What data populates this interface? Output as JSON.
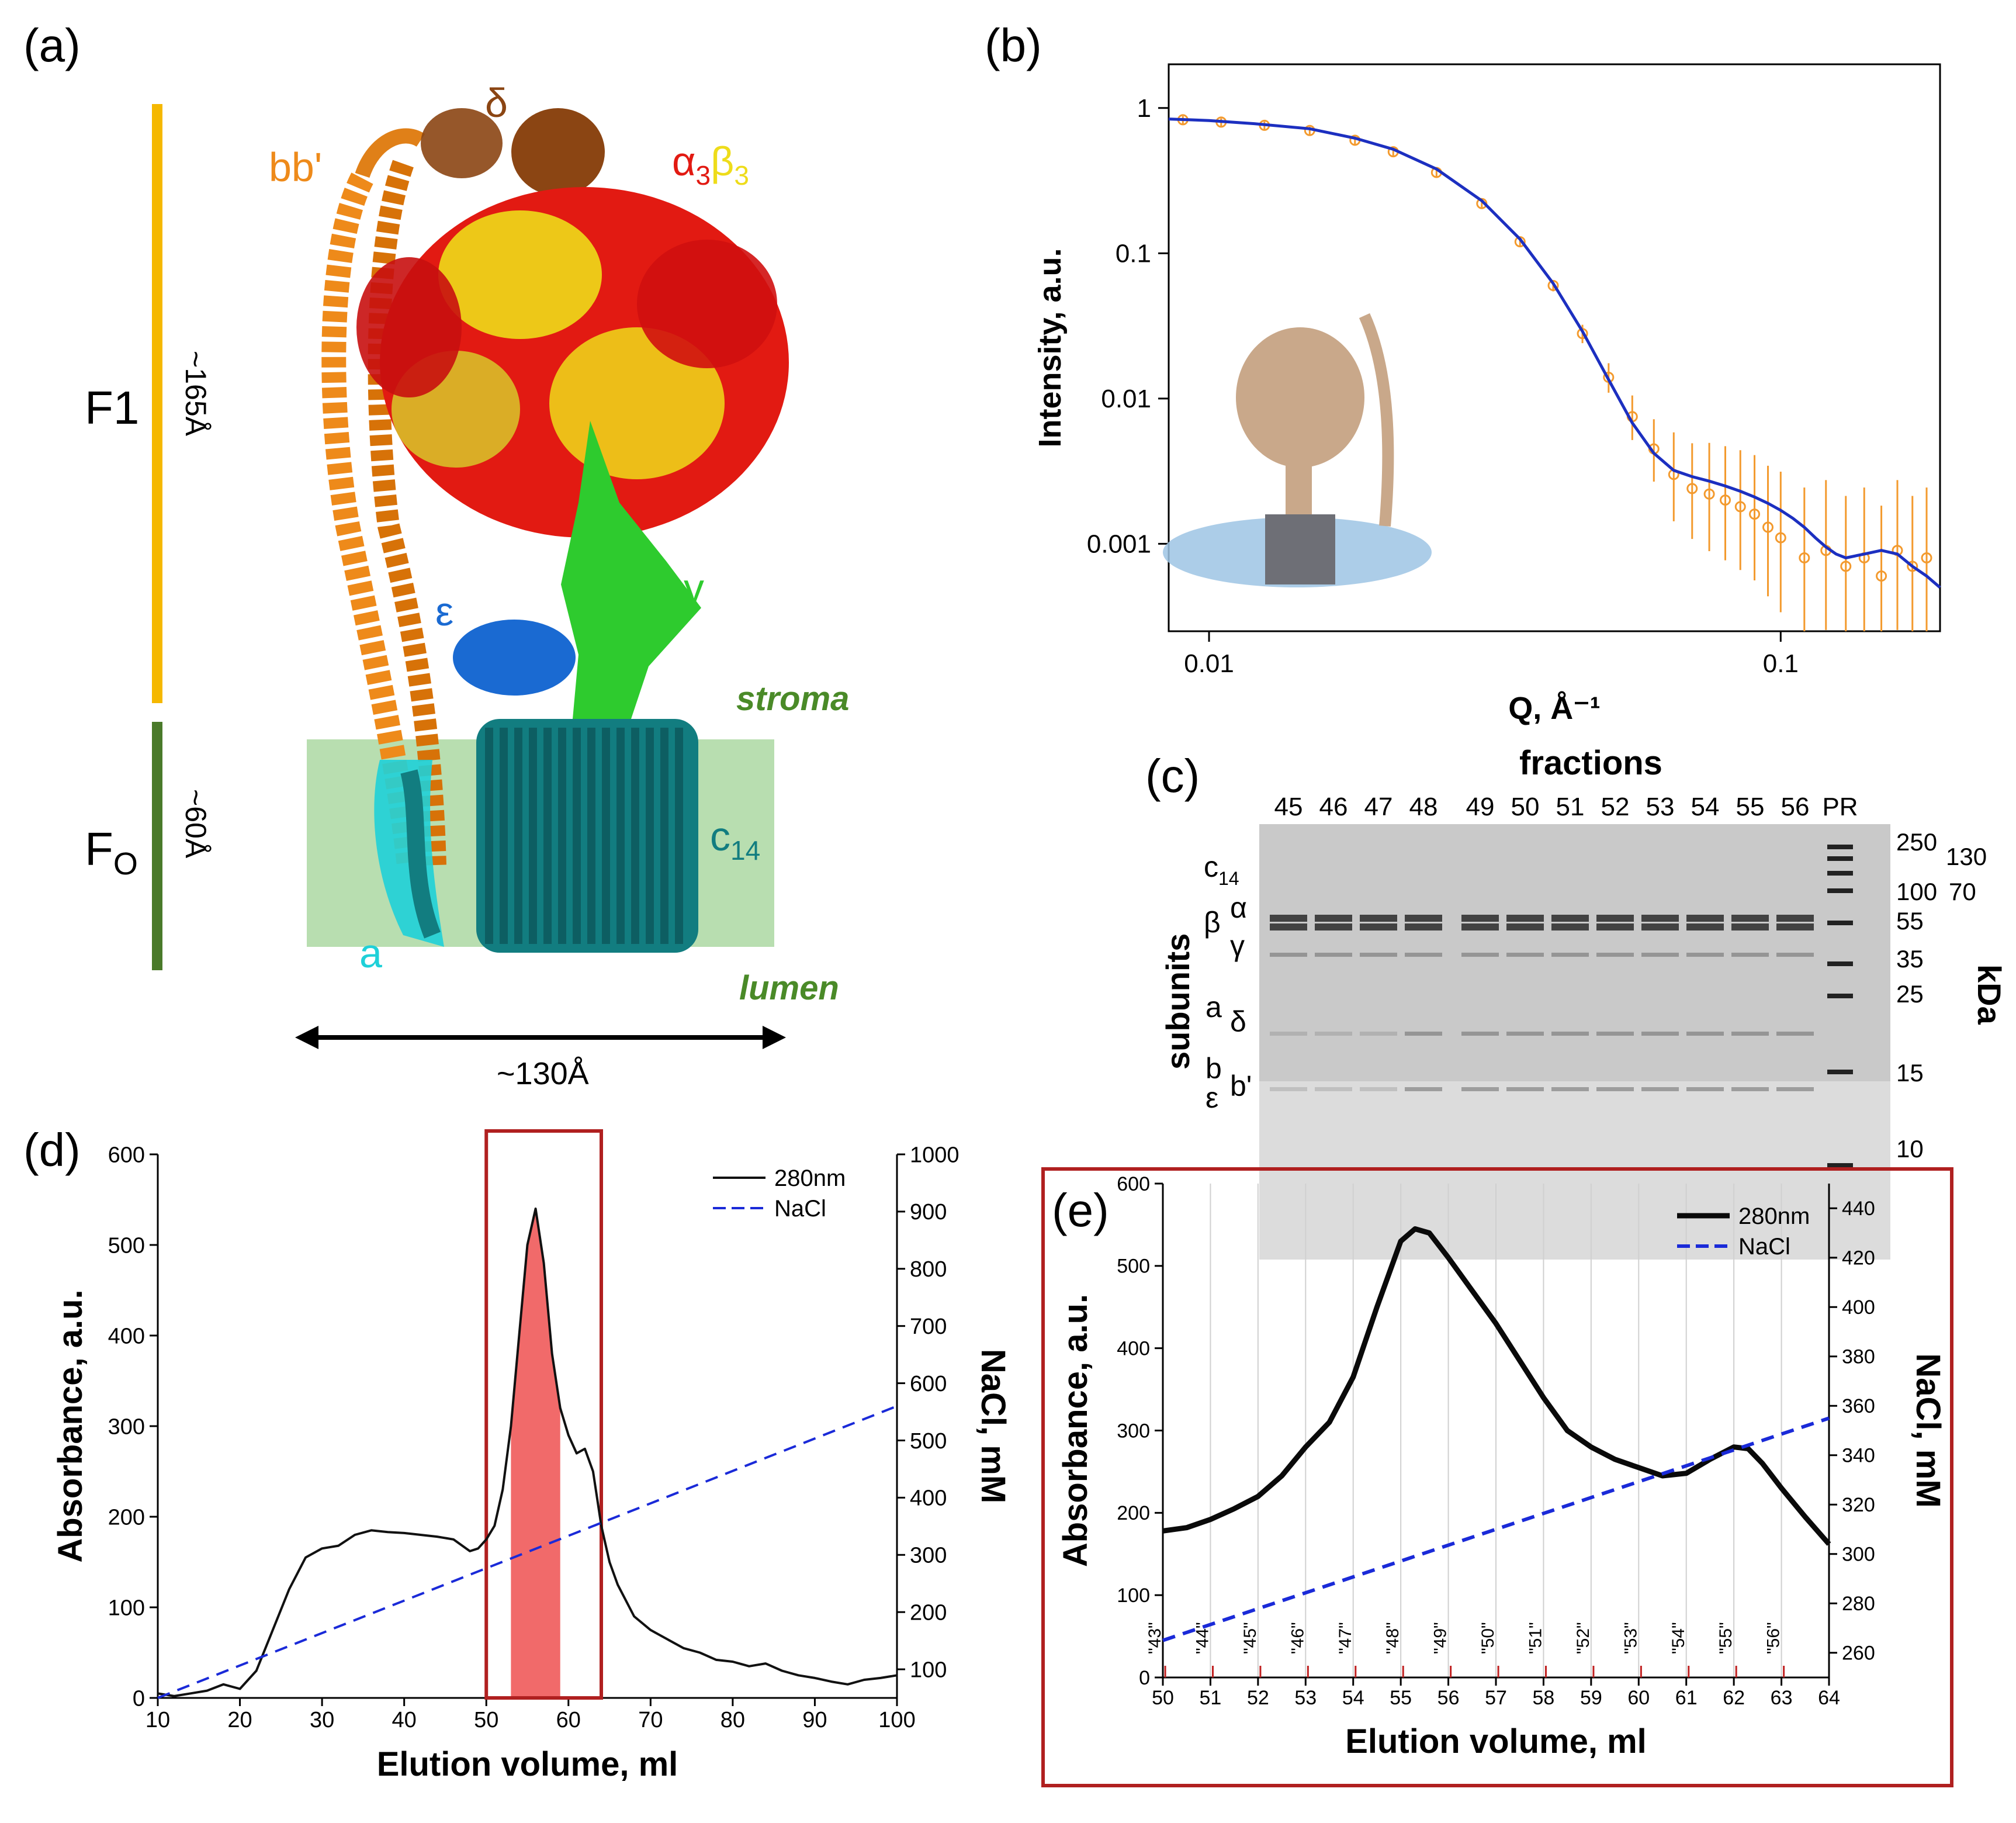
{
  "panels": {
    "a": {
      "tag": "(a)",
      "f1_label": "F1",
      "f1_size": "~165Å",
      "fo_main": "F",
      "fo_sub": "O",
      "fo_size": "~60Å",
      "width_label": "~130Å",
      "subunits": {
        "delta": "δ",
        "bb": "bb'",
        "alpha": "α",
        "alpha_sub": "3",
        "beta": "β",
        "beta_sub": "3",
        "gamma": "γ",
        "epsilon": "ε",
        "c": "c",
        "c_sub": "14",
        "a": "a"
      },
      "stroma": "stroma",
      "lumen": "lumen",
      "colors": {
        "f1_bar": "#f5b800",
        "fo_bar": "#4a7a2a",
        "membrane": "#b8deb0",
        "orange": "#ee8a1a",
        "red": "#e21a12",
        "yellow": "#eedc1a",
        "green": "#2ecb2e",
        "blue": "#1a6ad2",
        "teal": "#127d80",
        "cyan": "#1fd0d8",
        "brown": "#8b4513"
      }
    },
    "b": {
      "tag": "(b)"
    },
    "c": {
      "tag": "(c)",
      "title": "fractions",
      "lanes": [
        "45",
        "46",
        "47",
        "48",
        "49",
        "50",
        "51",
        "52",
        "53",
        "54",
        "55",
        "56",
        "PR"
      ],
      "left_title": "subunits",
      "right_title": "kDa",
      "kda": [
        "250",
        "130",
        "100",
        "70",
        "55",
        "35",
        "25",
        "15",
        "10"
      ],
      "subunit_labels": {
        "c14_main": "c",
        "c14_sub": "14",
        "beta": "β",
        "alpha": "α",
        "gamma": "γ",
        "a": "a",
        "delta": "δ",
        "b": "b",
        "bprime": "b'",
        "epsilon": "ε"
      }
    },
    "d": {
      "tag": "(d)"
    },
    "e": {
      "tag": "(e)"
    }
  },
  "chart_data": [
    {
      "panel": "b",
      "type": "scatter",
      "xscale": "log",
      "yscale": "log",
      "xlabel": "Q, Å⁻¹",
      "ylabel": "Intensity, a.u.",
      "xlim": [
        0.0085,
        0.19
      ],
      "ylim": [
        0.00025,
        2.0
      ],
      "xticks": [
        {
          "v": 0.01,
          "t": "0.01"
        },
        {
          "v": 0.1,
          "t": "0.1"
        }
      ],
      "yticks": [
        {
          "v": 1,
          "t": "1"
        },
        {
          "v": 0.1,
          "t": "0.1"
        },
        {
          "v": 0.01,
          "t": "0.01"
        },
        {
          "v": 0.001,
          "t": "0.001"
        }
      ],
      "series": [
        {
          "kind": "points",
          "color": "#f39a2e",
          "x": [
            0.009,
            0.0105,
            0.0125,
            0.015,
            0.018,
            0.021,
            0.025,
            0.03,
            0.035,
            0.04,
            0.045,
            0.05,
            0.055,
            0.06,
            0.065,
            0.07,
            0.075,
            0.08,
            0.085,
            0.09,
            0.095,
            0.1,
            0.11,
            0.12,
            0.13,
            0.14,
            0.15,
            0.16,
            0.17,
            0.18
          ],
          "y": [
            0.83,
            0.8,
            0.76,
            0.7,
            0.6,
            0.5,
            0.36,
            0.22,
            0.12,
            0.06,
            0.028,
            0.014,
            0.0075,
            0.0045,
            0.003,
            0.0024,
            0.0022,
            0.002,
            0.0018,
            0.0016,
            0.0013,
            0.0011,
            0.0008,
            0.0009,
            0.0007,
            0.0008,
            0.0006,
            0.0009,
            0.0007,
            0.0008
          ],
          "err": [
            0.01,
            0.01,
            0.01,
            0.01,
            0.01,
            0.01,
            0.01,
            0.01,
            0.02,
            0.04,
            0.1,
            0.2,
            0.35,
            0.55,
            0.9,
            1.0,
            1.2,
            1.3,
            1.4,
            1.5,
            1.6,
            1.8,
            2.0,
            2.0,
            2.0,
            2.0,
            2.0,
            2.0,
            2.0,
            2.0
          ]
        },
        {
          "kind": "line",
          "color": "#1c2fc0",
          "x": [
            0.0085,
            0.01,
            0.012,
            0.015,
            0.018,
            0.021,
            0.025,
            0.03,
            0.035,
            0.04,
            0.045,
            0.05,
            0.055,
            0.06,
            0.065,
            0.07,
            0.075,
            0.08,
            0.085,
            0.09,
            0.095,
            0.1,
            0.105,
            0.11,
            0.115,
            0.12,
            0.125,
            0.13,
            0.14,
            0.15,
            0.16,
            0.17,
            0.18,
            0.19
          ],
          "y": [
            0.84,
            0.82,
            0.78,
            0.72,
            0.62,
            0.52,
            0.38,
            0.23,
            0.125,
            0.062,
            0.029,
            0.0135,
            0.0068,
            0.0042,
            0.0032,
            0.0029,
            0.0027,
            0.0025,
            0.0023,
            0.0021,
            0.0019,
            0.0017,
            0.0015,
            0.0013,
            0.0011,
            0.00095,
            0.00085,
            0.0008,
            0.00085,
            0.0009,
            0.00085,
            0.0007,
            0.0006,
            0.0005
          ]
        }
      ]
    },
    {
      "panel": "d",
      "type": "line",
      "xlabel": "Elution volume, ml",
      "ylabel": "Absorbance, a.u.",
      "y2label": "NaCl, mM",
      "xlim": [
        10,
        100
      ],
      "ylim": [
        0,
        600
      ],
      "y2lim": [
        50,
        1000
      ],
      "xticks": [
        10,
        20,
        30,
        40,
        50,
        60,
        70,
        80,
        90,
        100
      ],
      "yticks": [
        0,
        100,
        200,
        300,
        400,
        500,
        600
      ],
      "y2ticks": [
        100,
        200,
        300,
        400,
        500,
        600,
        700,
        800,
        900,
        1000
      ],
      "legend": [
        {
          "name": "280nm",
          "style": "solid"
        },
        {
          "name": "NaCl",
          "style": "dashed"
        }
      ],
      "highlight_box": [
        50,
        64
      ],
      "filled_range": [
        53,
        59
      ],
      "series": [
        {
          "name": "280nm",
          "axis": "left",
          "color": "#111111",
          "x": [
            10,
            12,
            14,
            16,
            18,
            20,
            22,
            24,
            26,
            28,
            30,
            32,
            34,
            36,
            38,
            40,
            42,
            44,
            46,
            48,
            49,
            50,
            51,
            52,
            53,
            54,
            55,
            56,
            57,
            58,
            59,
            60,
            61,
            62,
            63,
            64,
            65,
            66,
            68,
            70,
            72,
            74,
            76,
            78,
            80,
            82,
            84,
            86,
            88,
            90,
            92,
            94,
            96,
            98,
            100
          ],
          "y": [
            5,
            2,
            5,
            8,
            15,
            10,
            30,
            75,
            120,
            155,
            165,
            168,
            180,
            185,
            183,
            182,
            180,
            178,
            175,
            162,
            165,
            175,
            190,
            230,
            300,
            400,
            500,
            540,
            480,
            380,
            320,
            290,
            270,
            275,
            250,
            190,
            150,
            125,
            90,
            75,
            65,
            55,
            50,
            42,
            40,
            35,
            38,
            30,
            25,
            22,
            18,
            15,
            20,
            22,
            25
          ]
        },
        {
          "name": "NaCl",
          "axis": "right",
          "color": "#1a2ad8",
          "x": [
            10,
            100
          ],
          "y": [
            50,
            560
          ]
        }
      ]
    },
    {
      "panel": "e",
      "type": "line",
      "xlabel": "Elution volume, ml",
      "ylabel": "Absorbance, a.u.",
      "y2label": "NaCl, mM",
      "xlim": [
        50,
        64
      ],
      "ylim": [
        0,
        600
      ],
      "y2lim": [
        250,
        450
      ],
      "xticks": [
        50,
        51,
        52,
        53,
        54,
        55,
        56,
        57,
        58,
        59,
        60,
        61,
        62,
        63,
        64
      ],
      "yticks": [
        0,
        100,
        200,
        300,
        400,
        500,
        600
      ],
      "y2ticks": [
        260,
        280,
        300,
        320,
        340,
        360,
        380,
        400,
        420,
        440
      ],
      "legend": [
        {
          "name": "280nm",
          "style": "solid"
        },
        {
          "name": "NaCl",
          "style": "dashed"
        }
      ],
      "fraction_marks": [
        {
          "x": 50.05,
          "t": "\"43\""
        },
        {
          "x": 51.05,
          "t": "\"44\""
        },
        {
          "x": 52.05,
          "t": "\"45\""
        },
        {
          "x": 53.05,
          "t": "\"46\""
        },
        {
          "x": 54.05,
          "t": "\"47\""
        },
        {
          "x": 55.05,
          "t": "\"48\""
        },
        {
          "x": 56.05,
          "t": "\"49\""
        },
        {
          "x": 57.05,
          "t": "\"50\""
        },
        {
          "x": 58.05,
          "t": "\"51\""
        },
        {
          "x": 59.05,
          "t": "\"52\""
        },
        {
          "x": 60.05,
          "t": "\"53\""
        },
        {
          "x": 61.05,
          "t": "\"54\""
        },
        {
          "x": 62.05,
          "t": "\"55\""
        },
        {
          "x": 63.05,
          "t": "\"56\""
        }
      ],
      "series": [
        {
          "name": "280nm",
          "axis": "left",
          "color": "#0a0a0a",
          "x": [
            50,
            50.5,
            51,
            51.5,
            52,
            52.5,
            53,
            53.5,
            54,
            54.5,
            55,
            55.3,
            55.6,
            56,
            56.5,
            57,
            57.5,
            58,
            58.5,
            59,
            59.5,
            60,
            60.5,
            61,
            61.5,
            62,
            62.3,
            62.6,
            63,
            63.5,
            64
          ],
          "y": [
            178,
            182,
            192,
            205,
            220,
            245,
            280,
            310,
            365,
            450,
            530,
            545,
            540,
            510,
            470,
            430,
            385,
            340,
            300,
            280,
            265,
            255,
            245,
            248,
            265,
            280,
            278,
            260,
            230,
            195,
            162
          ]
        },
        {
          "name": "NaCl",
          "axis": "right",
          "color": "#1a2ad8",
          "x": [
            50,
            64
          ],
          "y": [
            265,
            355
          ]
        }
      ]
    }
  ]
}
